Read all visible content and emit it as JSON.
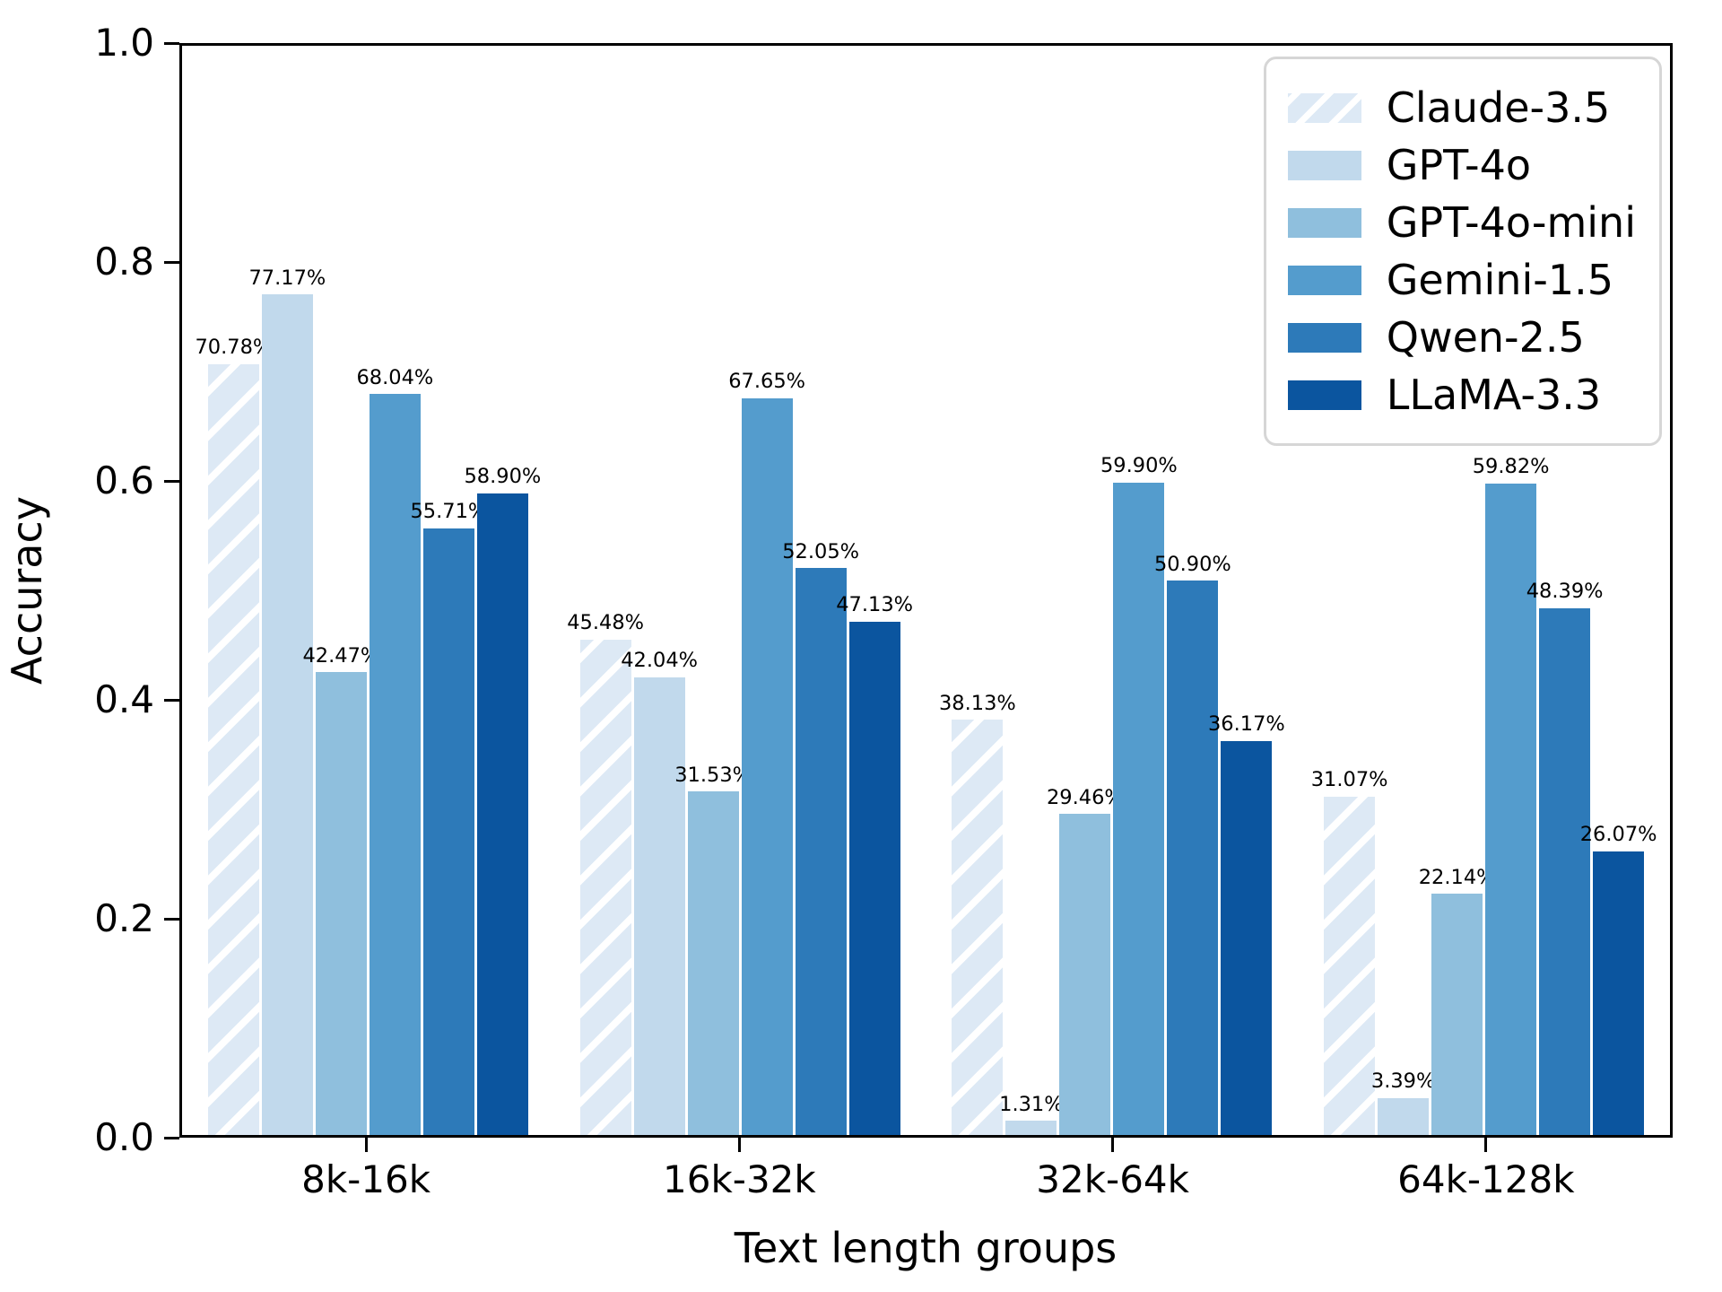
{
  "chart_data": {
    "type": "bar",
    "title": "",
    "xlabel": "Text length groups",
    "ylabel": "Accuracy",
    "ylim": [
      0.0,
      1.0
    ],
    "y_ticks": [
      "0.0",
      "0.2",
      "0.4",
      "0.6",
      "0.8",
      "1.0"
    ],
    "grid": false,
    "legend_position": "upper right",
    "value_label_suffix": "%",
    "categories": [
      "8k-16k",
      "16k-32k",
      "32k-64k",
      "64k-128k"
    ],
    "series": [
      {
        "name": "Claude-3.5",
        "color": "#dde9f5",
        "hatch": true,
        "values": [
          70.78,
          45.48,
          38.13,
          31.07
        ]
      },
      {
        "name": "GPT-4o",
        "color": "#c1d9ec",
        "hatch": false,
        "values": [
          77.17,
          42.04,
          1.31,
          3.39
        ]
      },
      {
        "name": "GPT-4o-mini",
        "color": "#8fbfdd",
        "hatch": false,
        "values": [
          42.47,
          31.53,
          29.46,
          22.14
        ]
      },
      {
        "name": "Gemini-1.5",
        "color": "#549ccd",
        "hatch": false,
        "values": [
          68.04,
          67.65,
          59.9,
          59.82
        ]
      },
      {
        "name": "Qwen-2.5",
        "color": "#2d7ab9",
        "hatch": false,
        "values": [
          55.71,
          52.05,
          50.9,
          48.39
        ]
      },
      {
        "name": "LLaMA-3.3",
        "color": "#0b559f",
        "hatch": false,
        "values": [
          58.9,
          47.13,
          36.17,
          26.07
        ]
      }
    ]
  }
}
